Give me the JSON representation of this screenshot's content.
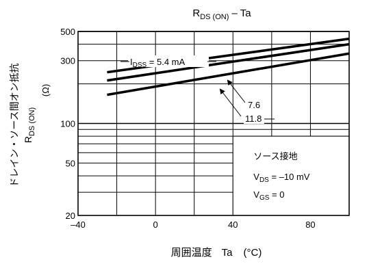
{
  "chart_data": {
    "type": "line",
    "title": {
      "main": "R",
      "sub": "DS (ON)",
      "suffix": " – Ta"
    },
    "xlabel": {
      "text": "周囲温度",
      "symbol": "Ta",
      "unit": "(°C)"
    },
    "ylabel": {
      "line1": "ドレイン・ソース間オン抵抗",
      "line2_main": "R",
      "line2_sub": "DS (ON)",
      "unit": "(Ω)"
    },
    "x_scale": "linear",
    "y_scale": "log",
    "xlim": [
      -40,
      100
    ],
    "ylim": [
      20,
      500
    ],
    "grid": true,
    "x_ticks": [
      {
        "value": -40,
        "label": "–40"
      },
      {
        "value": 0,
        "label": "0"
      },
      {
        "value": 40,
        "label": "40"
      },
      {
        "value": 80,
        "label": "80"
      }
    ],
    "y_ticks": [
      {
        "value": 20,
        "label": "20"
      },
      {
        "value": 50,
        "label": "50"
      },
      {
        "value": 100,
        "label": "100"
      },
      {
        "value": 300,
        "label": "300"
      },
      {
        "value": 500,
        "label": "500"
      }
    ],
    "y_gridlines": [
      30,
      40,
      50,
      60,
      70,
      80,
      90,
      100,
      200,
      300,
      400,
      500
    ],
    "series": [
      {
        "label_prefix": "I",
        "label_sub": "DSS",
        "label_value": " = 5.4 mA",
        "x": [
          -25,
          100
        ],
        "y": [
          245,
          440
        ]
      },
      {
        "label_value": "7.6",
        "x": [
          -25,
          100
        ],
        "y": [
          212,
          400
        ]
      },
      {
        "label_value": "11.8",
        "x": [
          -25,
          100
        ],
        "y": [
          165,
          340
        ]
      }
    ],
    "conditions": {
      "heading": "ソース接地",
      "lines": [
        {
          "main": "V",
          "sub": "DS",
          "value": " = –10 mV"
        },
        {
          "main": "V",
          "sub": "GS",
          "value": " = 0"
        }
      ]
    }
  }
}
